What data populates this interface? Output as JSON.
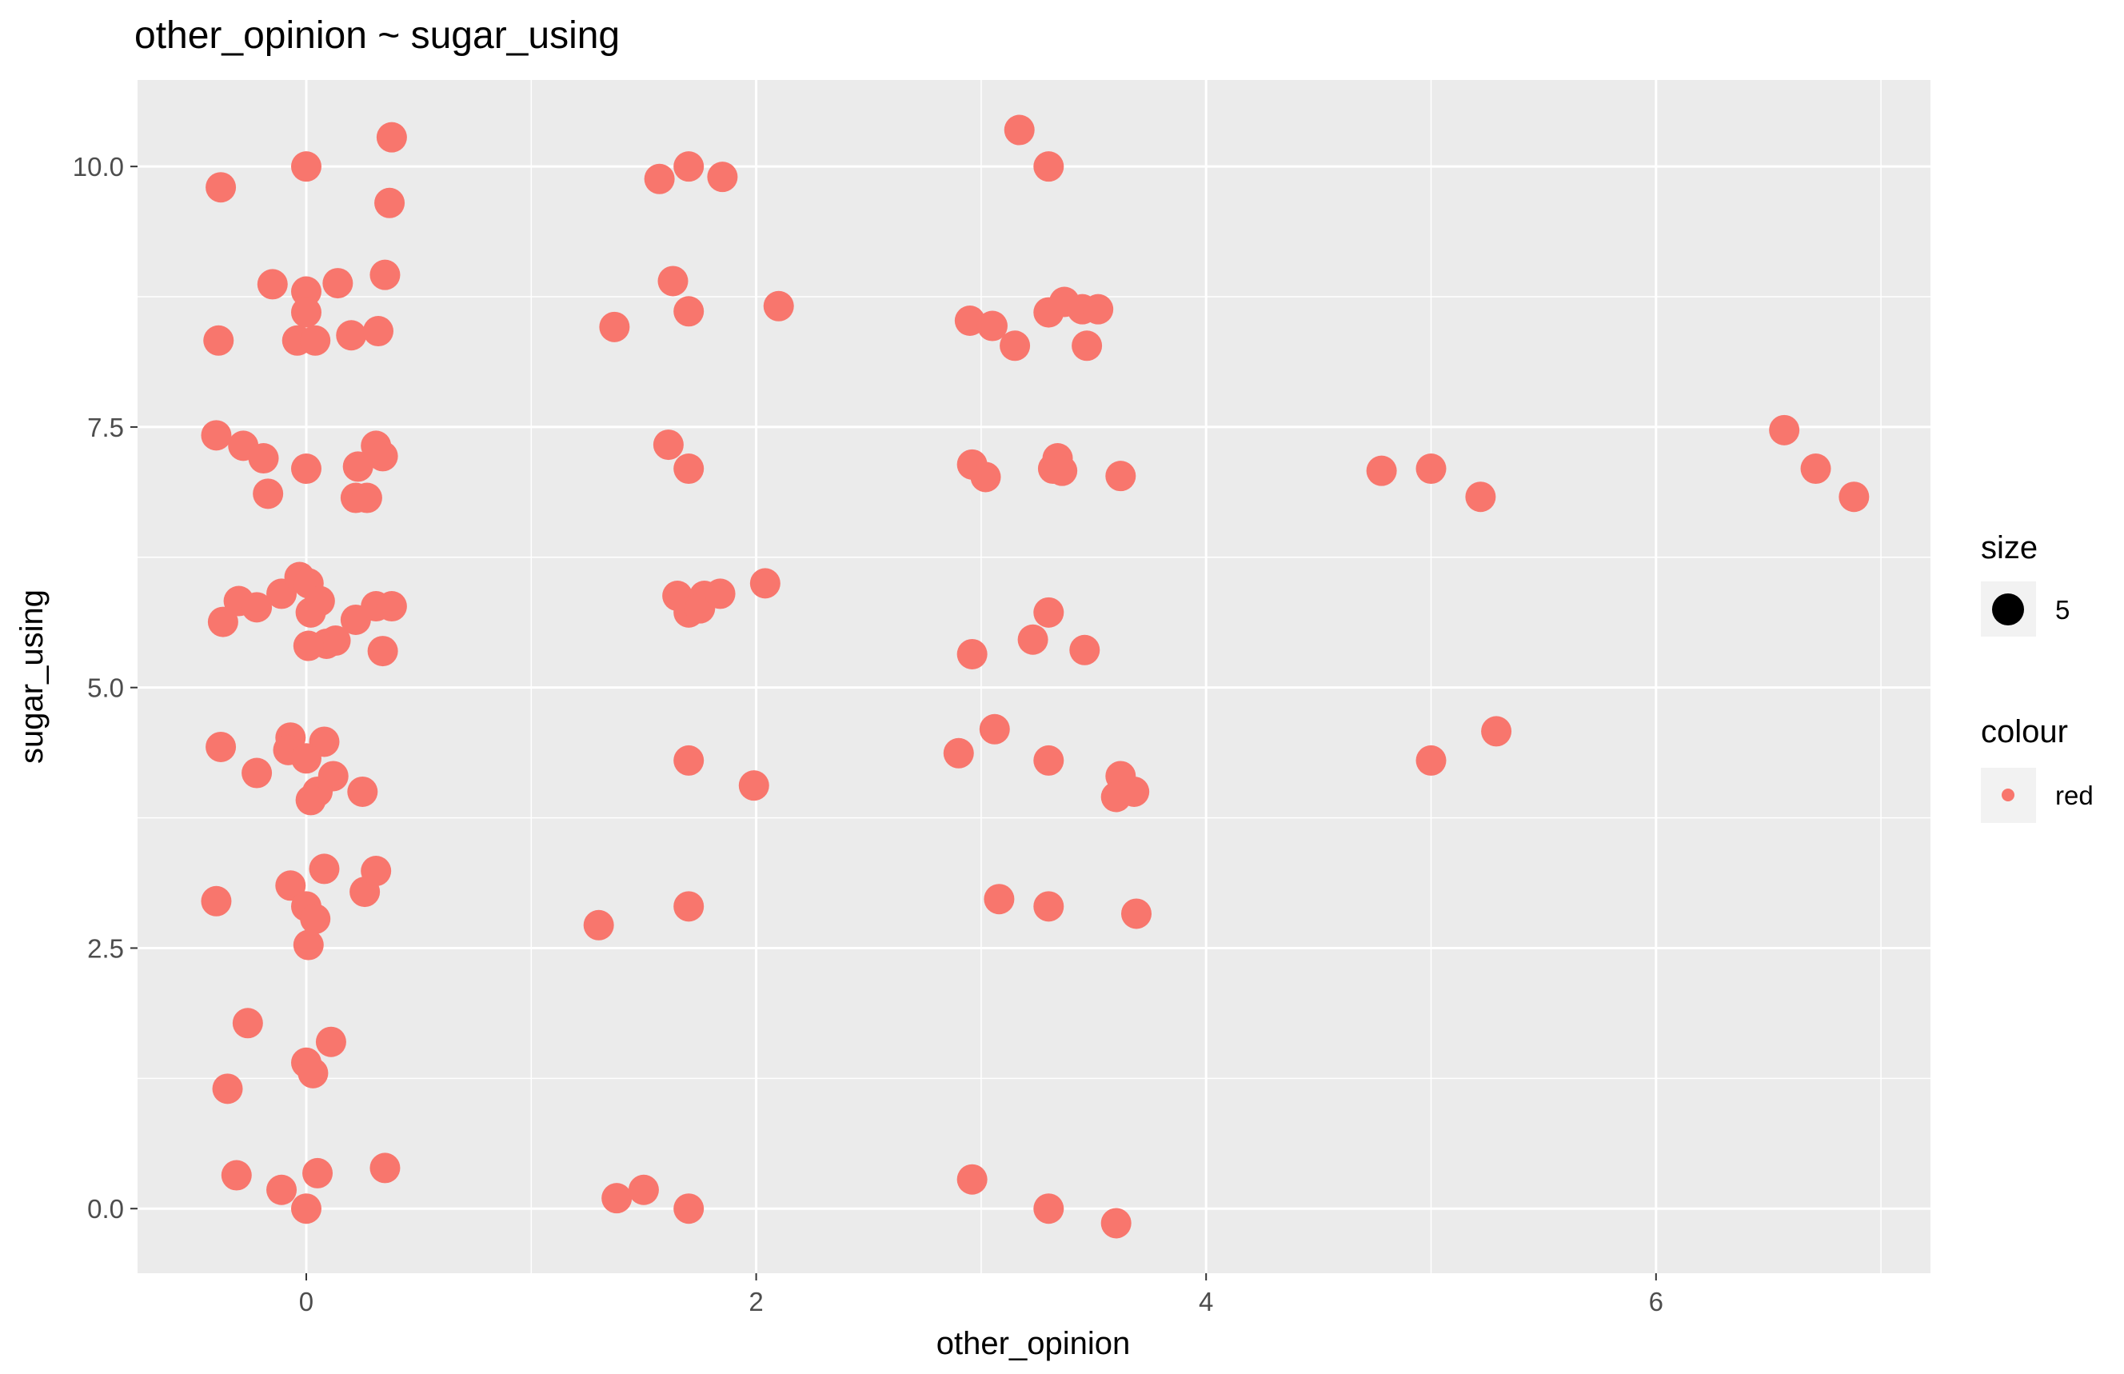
{
  "chart_data": {
    "type": "scatter",
    "title": "other_opinion ~ sugar_using",
    "xlabel": "other_opinion",
    "ylabel": "sugar_using",
    "xlim": [
      -0.75,
      7.22
    ],
    "ylim": [
      -0.62,
      10.83
    ],
    "x_ticks": [
      0,
      2,
      4,
      6
    ],
    "x_tick_labels": [
      "0",
      "2",
      "4",
      "6"
    ],
    "y_ticks": [
      0,
      2.5,
      5,
      7.5,
      10
    ],
    "y_tick_labels": [
      "0.0",
      "2.5",
      "5.0",
      "7.5",
      "10.0"
    ],
    "x_minor": [
      1,
      3,
      5,
      7
    ],
    "y_minor": [
      1.25,
      3.75,
      6.25,
      8.75
    ],
    "grid": true,
    "point_color": "#F8766D",
    "panel_color": "#EBEBEB",
    "grid_color": "#FFFFFF",
    "legend_position": "right",
    "legends": [
      {
        "title": "size",
        "label": "5",
        "key_color": "#000000",
        "key_shape": "large-dot"
      },
      {
        "title": "colour",
        "label": "red",
        "key_color": "#F8766D",
        "key_shape": "small-dot"
      }
    ],
    "series": [
      {
        "x": [
          -0.38,
          0.0,
          0.38,
          0.37,
          -0.15,
          0.0,
          0.14,
          0.35,
          0.0,
          -0.39,
          -0.04,
          0.04,
          0.2,
          0.32,
          -0.4,
          -0.28,
          -0.19,
          0.31,
          0.34,
          0.0,
          0.23,
          -0.17,
          0.22,
          0.27,
          -0.37,
          -0.3,
          -0.22,
          -0.11,
          -0.03,
          0.01,
          0.06,
          0.02,
          0.22,
          0.31,
          0.38,
          0.34,
          0.13,
          0.09,
          0.01,
          -0.38,
          -0.07,
          -0.08,
          0.08,
          0.0,
          0.12,
          0.05,
          0.02,
          -0.22,
          0.25,
          -0.4,
          -0.07,
          0.0,
          0.08,
          0.04,
          0.26,
          0.31,
          0.01,
          -0.26,
          0.11,
          0.0,
          0.03,
          -0.35,
          -0.31,
          -0.11,
          0.05,
          0.35,
          0.0
        ],
        "y": [
          9.8,
          10.0,
          10.28,
          9.65,
          8.87,
          8.8,
          8.88,
          8.96,
          8.6,
          8.33,
          8.33,
          8.33,
          8.38,
          8.42,
          7.42,
          7.32,
          7.2,
          7.32,
          7.22,
          7.1,
          7.12,
          6.86,
          6.82,
          6.82,
          5.63,
          5.83,
          5.77,
          5.9,
          6.06,
          6.0,
          5.83,
          5.72,
          5.65,
          5.78,
          5.78,
          5.35,
          5.45,
          5.42,
          5.4,
          4.43,
          4.52,
          4.4,
          4.48,
          4.32,
          4.15,
          4.0,
          3.92,
          4.18,
          4.0,
          2.95,
          3.1,
          2.9,
          3.26,
          2.78,
          3.04,
          3.24,
          2.53,
          1.78,
          1.6,
          1.4,
          1.3,
          1.15,
          0.32,
          0.18,
          0.34,
          0.39,
          0.0
        ]
      },
      {
        "x": [
          1.57,
          1.7,
          1.85,
          1.63,
          1.7,
          1.37,
          2.1,
          1.61,
          1.7,
          1.65,
          1.7,
          1.77,
          1.75,
          1.84,
          2.04,
          1.7,
          1.99,
          1.3,
          1.7,
          1.38,
          1.5,
          1.7
        ],
        "y": [
          9.88,
          10.0,
          9.9,
          8.9,
          8.61,
          8.46,
          8.66,
          7.33,
          7.1,
          5.88,
          5.72,
          5.88,
          5.76,
          5.9,
          6.0,
          4.3,
          4.06,
          2.72,
          2.9,
          0.1,
          0.18,
          0.0
        ]
      },
      {
        "x": [
          3.17,
          3.3,
          2.95,
          3.05,
          3.15,
          3.3,
          3.37,
          3.45,
          3.52,
          3.47,
          2.96,
          3.02,
          3.32,
          3.34,
          3.36,
          3.62,
          3.3,
          3.23,
          2.96,
          3.46,
          2.9,
          3.06,
          3.3,
          3.62,
          3.6,
          3.68,
          3.08,
          3.3,
          3.69,
          2.96,
          3.3,
          3.6
        ],
        "y": [
          10.35,
          10.0,
          8.52,
          8.47,
          8.28,
          8.6,
          8.7,
          8.63,
          8.63,
          8.28,
          7.14,
          7.02,
          7.1,
          7.2,
          7.08,
          7.03,
          5.72,
          5.46,
          5.32,
          5.36,
          4.37,
          4.6,
          4.3,
          4.15,
          3.95,
          4.0,
          2.97,
          2.9,
          2.83,
          0.28,
          0.0,
          -0.14
        ]
      },
      {
        "x": [
          4.78,
          5.0,
          5.22,
          5.0,
          5.29
        ],
        "y": [
          7.08,
          7.1,
          6.83,
          4.3,
          4.58
        ]
      },
      {
        "x": [
          6.57,
          6.71,
          6.88
        ],
        "y": [
          7.47,
          7.1,
          6.83
        ]
      }
    ]
  }
}
